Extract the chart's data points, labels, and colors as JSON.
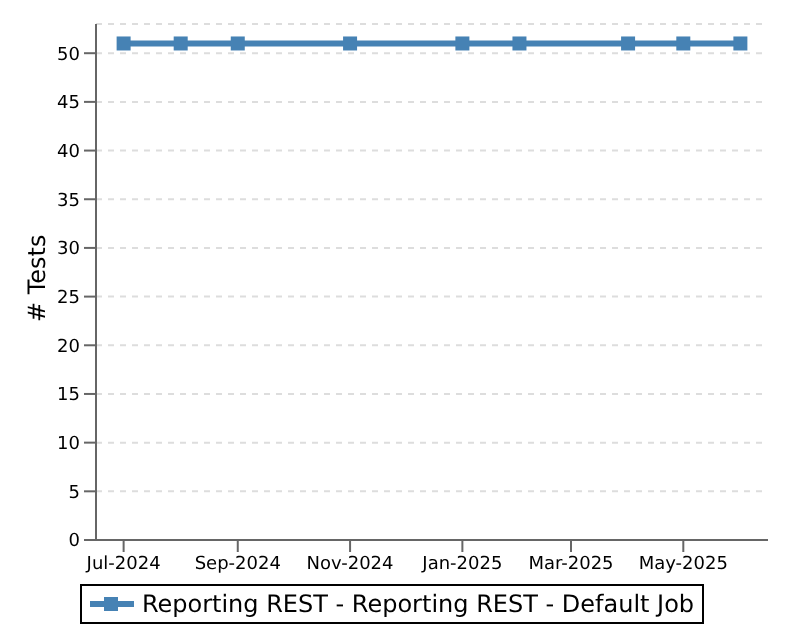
{
  "chart_data": {
    "type": "line",
    "ylabel": "# Tests",
    "x": [
      "2024-07",
      "2024-08",
      "2024-09",
      "2024-11",
      "2025-01",
      "2025-02",
      "2025-04",
      "2025-05",
      "2025-06"
    ],
    "series": [
      {
        "name": "Reporting REST - Reporting REST - Default Job",
        "color": "#4682b4",
        "values": [
          51,
          51,
          51,
          51,
          51,
          51,
          51,
          51,
          51
        ]
      }
    ],
    "xlim": [
      "2024-06-16",
      "2025-06-16"
    ],
    "xticks": [
      {
        "value": "2024-07",
        "label": "Jul-2024"
      },
      {
        "value": "2024-09",
        "label": "Sep-2024"
      },
      {
        "value": "2024-11",
        "label": "Nov-2024"
      },
      {
        "value": "2025-01",
        "label": "Jan-2025"
      },
      {
        "value": "2025-03",
        "label": "Mar-2025"
      },
      {
        "value": "2025-05",
        "label": "May-2025"
      }
    ],
    "ylim": [
      0,
      53
    ],
    "yticks": [
      0,
      5,
      10,
      15,
      20,
      25,
      30,
      35,
      40,
      45,
      50
    ],
    "grid": "y",
    "legend": "bottom",
    "marker": "square",
    "line_style": "solid"
  }
}
